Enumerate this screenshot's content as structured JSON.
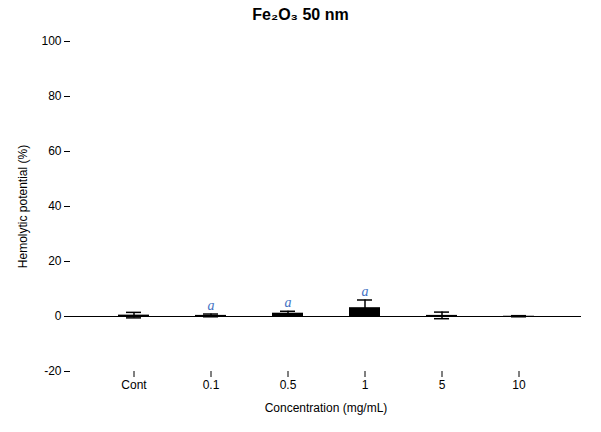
{
  "chart_data": {
    "type": "bar",
    "title": "Fe₂O₃ 50 nm",
    "xlabel": "Concentration (mg/mL)",
    "ylabel": "Hemolytic potential (%)",
    "categories": [
      "Cont",
      "0.1",
      "0.5",
      "1",
      "5",
      "10"
    ],
    "values": [
      0.5,
      0.4,
      1.2,
      3.2,
      0.4,
      0.1
    ],
    "errors": [
      1.0,
      0.5,
      0.7,
      2.8,
      1.2,
      0.2
    ],
    "color": "#000000",
    "ylim": [
      -20,
      100
    ],
    "yticks": [
      -20,
      0,
      20,
      40,
      60,
      80,
      100
    ],
    "grid": false,
    "annotations": [
      {
        "text": "a",
        "category": "0.1",
        "y": 2.4,
        "color": "#4472c4"
      },
      {
        "text": "a",
        "category": "0.5",
        "y": 3.4,
        "color": "#4472c4"
      },
      {
        "text": "a",
        "category": "1",
        "y": 7.5,
        "color": "#4472c4"
      }
    ]
  }
}
